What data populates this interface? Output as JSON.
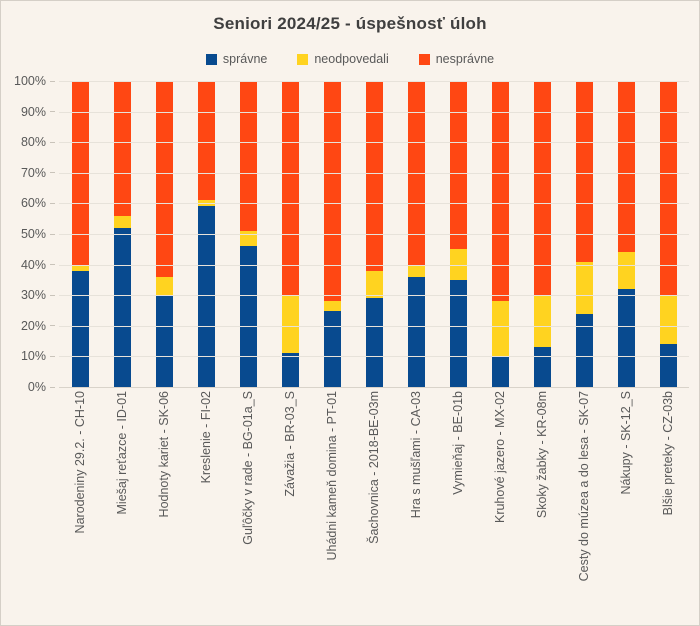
{
  "title": "Seniori 2024/25 - úspešnosť úloh",
  "chart_data": {
    "type": "bar",
    "stacked": true,
    "percent": true,
    "title": "Seniori 2024/25 - úspešnosť úloh",
    "xlabel": "",
    "ylabel": "",
    "ylim": [
      0,
      100
    ],
    "grid": true,
    "legend_position": "top",
    "y_ticks": [
      "100%",
      "90%",
      "80%",
      "70%",
      "60%",
      "50%",
      "40%",
      "30%",
      "20%",
      "10%",
      "0%"
    ],
    "categories": [
      "Narodeniny 29.2. - CH-10",
      "Miešaj reťazce - ID-01",
      "Hodnoty kariet - SK-06",
      "Kreslenie - FI-02",
      "Guľôčky v rade - BG-01a_S",
      "Závažia - BR-03_S",
      "Uhádni kameň domina - PT-01",
      "Šachovnica - 2018-BE-03m",
      "Hra s mušľami - CA-03",
      "Vymieňaj - BE-01b",
      "Kruhové jazero - MX-02",
      "Skoky žabky - KR-08m",
      "Cesty do múzea a do lesa - SK-07",
      "Nákupy - SK-12_S",
      "Blšie preteky - CZ-03b"
    ],
    "series": [
      {
        "name": "správne",
        "color": "#084a8f",
        "values": [
          38,
          52,
          30,
          59,
          46,
          11,
          25,
          29,
          36,
          35,
          10,
          13,
          24,
          32,
          14
        ]
      },
      {
        "name": "neodpovedali",
        "color": "#ffd320",
        "values": [
          2,
          4,
          6,
          2,
          5,
          19,
          3,
          9,
          4,
          10,
          18,
          17,
          17,
          12,
          16
        ]
      },
      {
        "name": "nesprávne",
        "color": "#ff4713",
        "values": [
          60,
          44,
          64,
          39,
          49,
          70,
          72,
          62,
          60,
          55,
          72,
          70,
          59,
          56,
          70
        ]
      }
    ]
  },
  "colors": {
    "background": "#f9f3ec",
    "gridline": "#e7e2da",
    "axis_text": "#595959",
    "title_text": "#3f3f3f"
  }
}
